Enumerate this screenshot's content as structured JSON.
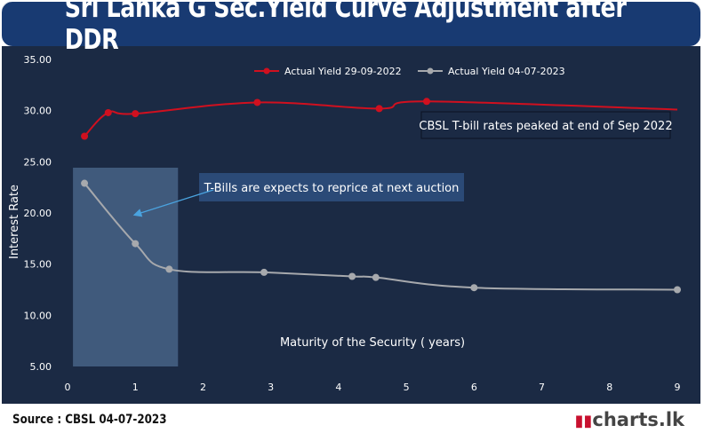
{
  "title": "Sri Lanka G Sec.Yield Curve Adjustment after DDR",
  "footer": {
    "source": "Source : CBSL  04-07-2023",
    "brand": "charts.lk"
  },
  "chart_data": {
    "type": "line",
    "xlabel": "Maturity of the Security ( years)",
    "ylabel": "Interest Rate",
    "xlim": [
      0,
      9
    ],
    "ylim": [
      5,
      35
    ],
    "x_ticks": [
      "0",
      "1",
      "2",
      "3",
      "4",
      "5",
      "6",
      "7",
      "8",
      "9"
    ],
    "y_ticks": [
      "5.00",
      "10.00",
      "15.00",
      "20.00",
      "25.00",
      "30.00",
      "35.00"
    ],
    "legend_position": "top",
    "series": [
      {
        "name": "Actual Yield 29-09-2022",
        "color": "#d0101f",
        "x": [
          0.25,
          0.6,
          1.0,
          2.8,
          4.6,
          5.3,
          9.0
        ],
        "y": [
          27.5,
          29.8,
          29.7,
          30.8,
          30.2,
          30.9,
          30.1
        ]
      },
      {
        "name": "Actual Yield 04-07-2023",
        "color": "#a7a9ad",
        "x": [
          0.25,
          1.0,
          1.5,
          2.9,
          4.2,
          4.55,
          6.0,
          9.0
        ],
        "y": [
          22.9,
          17.0,
          14.5,
          14.2,
          13.8,
          13.7,
          12.7,
          12.5
        ]
      }
    ],
    "annotations": [
      {
        "text": "CBSL  T-bill rates peaked at end of Sep 2022"
      },
      {
        "text": "T-Bills are expects to reprice at next auction"
      }
    ],
    "highlight_x_range": [
      0.08,
      1.63
    ]
  }
}
